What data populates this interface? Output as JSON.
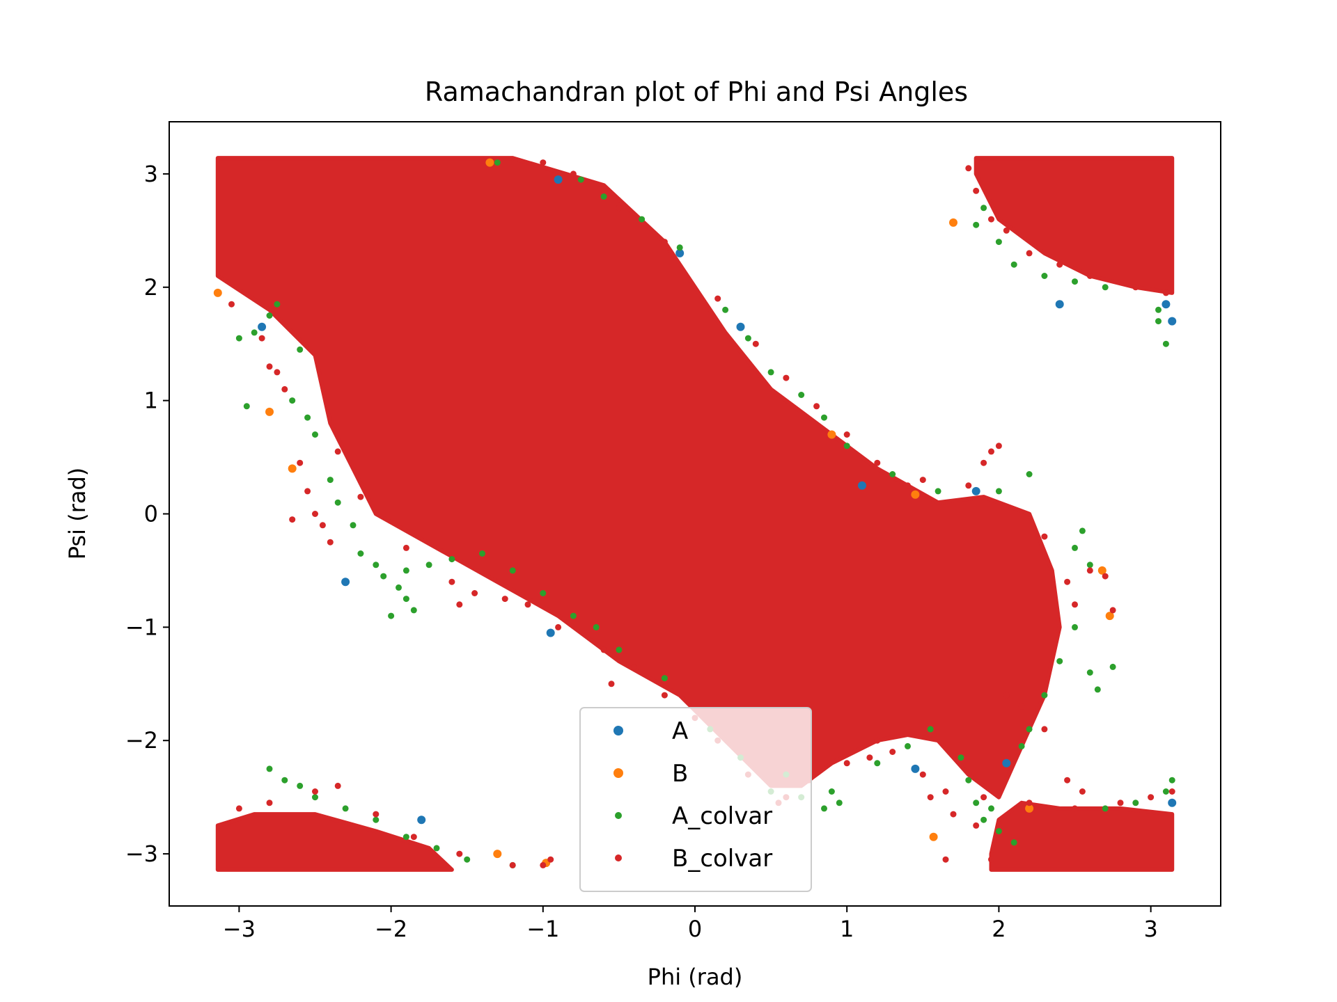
{
  "colors": {
    "A": "#1f77b4",
    "B": "#ff7f0e",
    "A_colvar": "#2ca02c",
    "B_colvar": "#d62728"
  },
  "chart_data": {
    "type": "scatter",
    "title": "Ramachandran plot of Phi and Psi Angles",
    "xlabel": "Phi (rad)",
    "ylabel": "Psi (rad)",
    "xlim": [
      -3.46,
      3.46
    ],
    "ylim": [
      -3.46,
      3.46
    ],
    "xticks": [
      -3,
      -2,
      -1,
      0,
      1,
      2,
      3
    ],
    "yticks": [
      -3,
      -2,
      -1,
      0,
      1,
      2,
      3
    ],
    "xtick_labels": [
      "−3",
      "−2",
      "−1",
      "0",
      "1",
      "2",
      "3"
    ],
    "ytick_labels": [
      "−3",
      "−2",
      "−1",
      "0",
      "1",
      "2",
      "3"
    ],
    "grid": false,
    "legend_position": "lower-center",
    "legend": [
      "A",
      "B",
      "A_colvar",
      "B_colvar"
    ],
    "dense_regions": [
      {
        "name": "main-diagonal-region",
        "polygon": [
          [
            -3.14,
            3.14
          ],
          [
            -1.2,
            3.14
          ],
          [
            -0.6,
            2.9
          ],
          [
            -0.2,
            2.4
          ],
          [
            0.2,
            1.6
          ],
          [
            0.5,
            1.1
          ],
          [
            0.9,
            0.7
          ],
          [
            1.2,
            0.4
          ],
          [
            1.6,
            0.1
          ],
          [
            1.9,
            0.15
          ],
          [
            2.2,
            0.0
          ],
          [
            2.35,
            -0.5
          ],
          [
            2.4,
            -1.0
          ],
          [
            2.3,
            -1.6
          ],
          [
            2.1,
            -2.2
          ],
          [
            2.0,
            -2.5
          ],
          [
            1.8,
            -2.3
          ],
          [
            1.6,
            -2.0
          ],
          [
            1.4,
            -1.95
          ],
          [
            1.2,
            -2.0
          ],
          [
            0.9,
            -2.2
          ],
          [
            0.7,
            -2.4
          ],
          [
            0.5,
            -2.4
          ],
          [
            0.2,
            -2.0
          ],
          [
            -0.1,
            -1.6
          ],
          [
            -0.5,
            -1.3
          ],
          [
            -0.9,
            -0.9
          ],
          [
            -1.3,
            -0.6
          ],
          [
            -1.7,
            -0.3
          ],
          [
            -2.1,
            0.0
          ],
          [
            -2.4,
            0.8
          ],
          [
            -2.5,
            1.4
          ],
          [
            -2.8,
            1.8
          ],
          [
            -3.14,
            2.1
          ]
        ]
      },
      {
        "name": "top-right-region",
        "polygon": [
          [
            1.85,
            3.14
          ],
          [
            3.14,
            3.14
          ],
          [
            3.14,
            1.95
          ],
          [
            2.9,
            2.0
          ],
          [
            2.6,
            2.1
          ],
          [
            2.3,
            2.3
          ],
          [
            2.0,
            2.6
          ],
          [
            1.85,
            3.0
          ]
        ]
      },
      {
        "name": "bottom-left-region",
        "polygon": [
          [
            -3.14,
            -3.14
          ],
          [
            -1.6,
            -3.14
          ],
          [
            -1.75,
            -2.95
          ],
          [
            -2.1,
            -2.8
          ],
          [
            -2.5,
            -2.65
          ],
          [
            -2.9,
            -2.65
          ],
          [
            -3.14,
            -2.75
          ]
        ]
      },
      {
        "name": "bottom-right-region",
        "polygon": [
          [
            1.95,
            -3.14
          ],
          [
            3.14,
            -3.14
          ],
          [
            3.14,
            -2.65
          ],
          [
            2.8,
            -2.6
          ],
          [
            2.4,
            -2.6
          ],
          [
            2.15,
            -2.55
          ],
          [
            2.0,
            -2.7
          ],
          [
            1.95,
            -3.0
          ]
        ]
      }
    ],
    "series": [
      {
        "name": "A",
        "points": [
          [
            -2.85,
            1.65
          ],
          [
            -2.3,
            -0.6
          ],
          [
            -1.8,
            -2.7
          ],
          [
            -0.95,
            -1.05
          ],
          [
            -0.9,
            2.95
          ],
          [
            -0.1,
            2.3
          ],
          [
            0.3,
            1.65
          ],
          [
            1.1,
            0.25
          ],
          [
            1.45,
            -2.25
          ],
          [
            1.85,
            0.2
          ],
          [
            2.4,
            1.85
          ],
          [
            3.1,
            1.85
          ],
          [
            3.14,
            1.7
          ],
          [
            2.05,
            -2.2
          ],
          [
            3.14,
            -2.55
          ]
        ]
      },
      {
        "name": "B",
        "points": [
          [
            -3.14,
            1.95
          ],
          [
            -2.65,
            0.4
          ],
          [
            -2.8,
            0.9
          ],
          [
            -1.3,
            -3.0
          ],
          [
            -1.35,
            3.1
          ],
          [
            0.9,
            0.7
          ],
          [
            1.45,
            0.17
          ],
          [
            1.57,
            -2.85
          ],
          [
            2.68,
            -0.5
          ],
          [
            2.73,
            -0.9
          ],
          [
            1.7,
            2.57
          ],
          [
            2.2,
            -2.6
          ],
          [
            -0.98,
            -3.08
          ]
        ]
      },
      {
        "name": "A_colvar",
        "points": [
          [
            -3.0,
            1.55
          ],
          [
            -2.9,
            1.6
          ],
          [
            -2.95,
            0.95
          ],
          [
            -2.8,
            1.75
          ],
          [
            -2.75,
            1.85
          ],
          [
            -2.65,
            1.0
          ],
          [
            -2.6,
            1.45
          ],
          [
            -2.55,
            0.85
          ],
          [
            -2.5,
            0.7
          ],
          [
            -2.4,
            0.3
          ],
          [
            -2.35,
            0.1
          ],
          [
            -2.25,
            -0.1
          ],
          [
            -2.2,
            -0.35
          ],
          [
            -2.1,
            -0.45
          ],
          [
            -2.05,
            -0.55
          ],
          [
            -1.95,
            -0.65
          ],
          [
            -1.9,
            -0.75
          ],
          [
            -1.85,
            -0.85
          ],
          [
            -2.0,
            -0.9
          ],
          [
            -1.9,
            -0.5
          ],
          [
            -1.75,
            -0.45
          ],
          [
            -1.6,
            -0.4
          ],
          [
            -1.4,
            -0.35
          ],
          [
            -1.2,
            -0.5
          ],
          [
            -1.0,
            -0.7
          ],
          [
            -0.8,
            -0.9
          ],
          [
            -0.65,
            -1.0
          ],
          [
            -0.5,
            -1.2
          ],
          [
            -0.2,
            -1.45
          ],
          [
            0.1,
            -1.9
          ],
          [
            0.3,
            -2.15
          ],
          [
            0.5,
            -2.45
          ],
          [
            0.7,
            -2.5
          ],
          [
            0.85,
            -2.6
          ],
          [
            0.95,
            -2.55
          ],
          [
            1.2,
            -2.2
          ],
          [
            1.4,
            -2.05
          ],
          [
            1.55,
            -1.9
          ],
          [
            1.75,
            -2.15
          ],
          [
            1.85,
            -2.55
          ],
          [
            1.9,
            -2.7
          ],
          [
            2.0,
            -2.8
          ],
          [
            2.1,
            -2.9
          ],
          [
            1.95,
            -2.6
          ],
          [
            2.2,
            -1.9
          ],
          [
            2.3,
            -1.6
          ],
          [
            2.4,
            -1.3
          ],
          [
            2.5,
            -1.0
          ],
          [
            2.6,
            -1.4
          ],
          [
            2.65,
            -1.55
          ],
          [
            2.75,
            -1.35
          ],
          [
            2.6,
            -0.45
          ],
          [
            2.5,
            -0.3
          ],
          [
            2.2,
            0.35
          ],
          [
            2.0,
            0.2
          ],
          [
            1.6,
            0.2
          ],
          [
            1.3,
            0.35
          ],
          [
            1.0,
            0.6
          ],
          [
            0.85,
            0.85
          ],
          [
            0.7,
            1.05
          ],
          [
            0.5,
            1.25
          ],
          [
            0.35,
            1.55
          ],
          [
            0.2,
            1.8
          ],
          [
            -0.1,
            2.35
          ],
          [
            -0.35,
            2.6
          ],
          [
            -0.6,
            2.8
          ],
          [
            -0.75,
            2.95
          ],
          [
            -1.3,
            3.1
          ],
          [
            1.85,
            2.55
          ],
          [
            1.9,
            2.7
          ],
          [
            2.0,
            2.4
          ],
          [
            2.1,
            2.2
          ],
          [
            2.3,
            2.1
          ],
          [
            2.5,
            2.05
          ],
          [
            2.7,
            2.0
          ],
          [
            3.05,
            1.7
          ],
          [
            3.1,
            1.5
          ],
          [
            3.05,
            1.8
          ],
          [
            3.14,
            -2.35
          ],
          [
            3.1,
            -2.45
          ],
          [
            2.9,
            -2.55
          ],
          [
            2.7,
            -2.6
          ],
          [
            -2.8,
            -2.25
          ],
          [
            -2.7,
            -2.35
          ],
          [
            -2.6,
            -2.4
          ],
          [
            -2.5,
            -2.5
          ],
          [
            -2.3,
            -2.6
          ],
          [
            -2.1,
            -2.7
          ],
          [
            -1.9,
            -2.85
          ],
          [
            -1.7,
            -2.95
          ],
          [
            -1.5,
            -3.05
          ],
          [
            -1.2,
            -3.1
          ],
          [
            0.9,
            -2.45
          ],
          [
            0.6,
            -2.3
          ],
          [
            2.55,
            -0.15
          ],
          [
            1.8,
            -2.35
          ],
          [
            2.15,
            -2.05
          ]
        ]
      },
      {
        "name": "B_colvar",
        "points": [
          [
            -3.05,
            1.85
          ],
          [
            -2.85,
            1.55
          ],
          [
            -2.8,
            1.3
          ],
          [
            -2.75,
            1.25
          ],
          [
            -2.7,
            1.1
          ],
          [
            -2.6,
            0.45
          ],
          [
            -2.65,
            -0.05
          ],
          [
            -2.55,
            0.2
          ],
          [
            -2.45,
            -0.1
          ],
          [
            -2.35,
            0.55
          ],
          [
            -2.5,
            0.0
          ],
          [
            -2.4,
            -0.25
          ],
          [
            -2.2,
            0.15
          ],
          [
            -1.9,
            -0.3
          ],
          [
            -1.6,
            -0.6
          ],
          [
            -1.55,
            -0.8
          ],
          [
            -1.45,
            -0.7
          ],
          [
            -1.25,
            -0.75
          ],
          [
            -1.1,
            -0.8
          ],
          [
            -0.9,
            -1.0
          ],
          [
            -0.6,
            -1.2
          ],
          [
            -0.55,
            -1.5
          ],
          [
            -0.4,
            -1.35
          ],
          [
            -0.2,
            -1.6
          ],
          [
            0.0,
            -1.8
          ],
          [
            0.15,
            -2.0
          ],
          [
            0.35,
            -2.3
          ],
          [
            0.6,
            -2.5
          ],
          [
            0.75,
            -2.35
          ],
          [
            1.0,
            -2.2
          ],
          [
            1.2,
            -2.0
          ],
          [
            1.3,
            -2.1
          ],
          [
            1.5,
            -2.3
          ],
          [
            1.55,
            -2.5
          ],
          [
            1.65,
            -2.45
          ],
          [
            1.7,
            -2.65
          ],
          [
            1.9,
            -2.5
          ],
          [
            1.85,
            -2.75
          ],
          [
            1.95,
            -3.05
          ],
          [
            1.65,
            -3.05
          ],
          [
            2.05,
            -1.6
          ],
          [
            2.15,
            -1.7
          ],
          [
            2.3,
            -1.9
          ],
          [
            2.45,
            -2.35
          ],
          [
            2.55,
            -2.45
          ],
          [
            2.6,
            -0.5
          ],
          [
            2.7,
            -0.55
          ],
          [
            2.75,
            -0.85
          ],
          [
            2.5,
            -0.8
          ],
          [
            2.45,
            -0.6
          ],
          [
            2.3,
            -0.2
          ],
          [
            2.0,
            0.6
          ],
          [
            1.95,
            0.55
          ],
          [
            1.9,
            0.45
          ],
          [
            1.8,
            0.25
          ],
          [
            1.5,
            0.3
          ],
          [
            1.4,
            0.25
          ],
          [
            1.2,
            0.45
          ],
          [
            1.0,
            0.7
          ],
          [
            0.8,
            0.95
          ],
          [
            0.6,
            1.2
          ],
          [
            0.4,
            1.5
          ],
          [
            0.15,
            1.9
          ],
          [
            -0.2,
            2.4
          ],
          [
            -0.5,
            2.7
          ],
          [
            -0.8,
            3.0
          ],
          [
            -1.0,
            3.1
          ],
          [
            -1.4,
            3.12
          ],
          [
            1.8,
            3.05
          ],
          [
            1.85,
            2.85
          ],
          [
            1.95,
            2.6
          ],
          [
            2.05,
            2.5
          ],
          [
            2.2,
            2.3
          ],
          [
            2.4,
            2.2
          ],
          [
            2.6,
            2.1
          ],
          [
            2.9,
            2.0
          ],
          [
            3.1,
            1.95
          ],
          [
            3.14,
            -2.45
          ],
          [
            3.0,
            -2.5
          ],
          [
            2.8,
            -2.55
          ],
          [
            2.5,
            -2.6
          ],
          [
            2.2,
            -2.55
          ],
          [
            -3.0,
            -2.6
          ],
          [
            -2.8,
            -2.55
          ],
          [
            -2.5,
            -2.45
          ],
          [
            -2.35,
            -2.4
          ],
          [
            -2.1,
            -2.65
          ],
          [
            -1.85,
            -2.85
          ],
          [
            -1.55,
            -3.0
          ],
          [
            -1.2,
            -3.1
          ],
          [
            -1.0,
            -3.1
          ],
          [
            -0.95,
            -3.05
          ],
          [
            0.55,
            -2.55
          ],
          [
            1.15,
            -2.15
          ]
        ]
      }
    ]
  }
}
